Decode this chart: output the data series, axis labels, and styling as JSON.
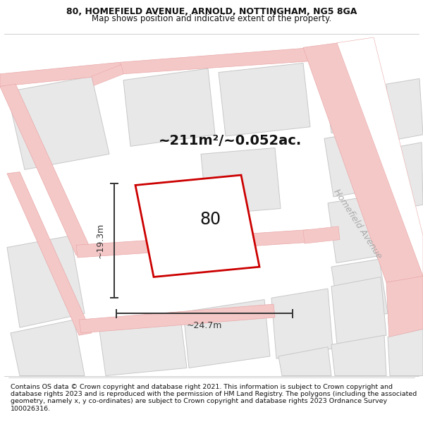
{
  "title_line1": "80, HOMEFIELD AVENUE, ARNOLD, NOTTINGHAM, NG5 8GA",
  "title_line2": "Map shows position and indicative extent of the property.",
  "area_label": "~211m²/~0.052ac.",
  "property_number": "80",
  "dim_width": "~24.7m",
  "dim_height": "~19.3m",
  "street_label": "Homefield Avenue",
  "footer_text": "Contains OS data © Crown copyright and database right 2021. This information is subject to Crown copyright and database rights 2023 and is reproduced with the permission of HM Land Registry. The polygons (including the associated geometry, namely x, y co-ordinates) are subject to Crown copyright and database rights 2023 Ordnance Survey 100026316.",
  "bg_color": "#ffffff",
  "block_fill": "#e8e8e8",
  "block_edge": "#c8c8c8",
  "road_color": "#f5c8c8",
  "road_edge": "#e8a8a8",
  "property_fill": "#ffffff",
  "property_edge": "#cc0000",
  "dim_color": "#333333",
  "text_color": "#111111",
  "street_label_color": "#aaaaaa",
  "title_fontsize": 9.0,
  "subtitle_fontsize": 8.5,
  "area_fontsize": 14,
  "num_fontsize": 17,
  "dim_fontsize": 9,
  "street_fontsize": 9,
  "footer_fontsize": 6.8
}
